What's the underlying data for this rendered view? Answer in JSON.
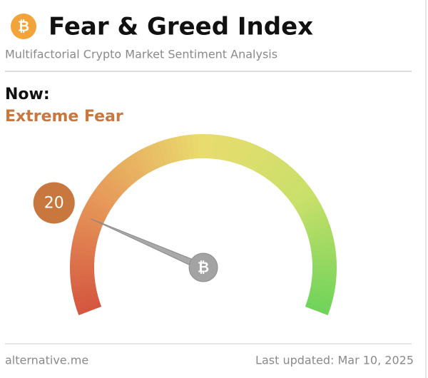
{
  "chart_data": {
    "type": "gauge",
    "logo_symbol": "₿",
    "title": "Fear & Greed Index",
    "subtitle": "Multifactorial Crypto Market Sentiment Analysis",
    "now_label": "Now:",
    "classification": "Extreme Fear",
    "value": 20,
    "color": "#c8773f",
    "ylim": [
      0,
      100
    ],
    "source": "alternative.me",
    "updated": "Last updated: Mar 10, 2025"
  }
}
